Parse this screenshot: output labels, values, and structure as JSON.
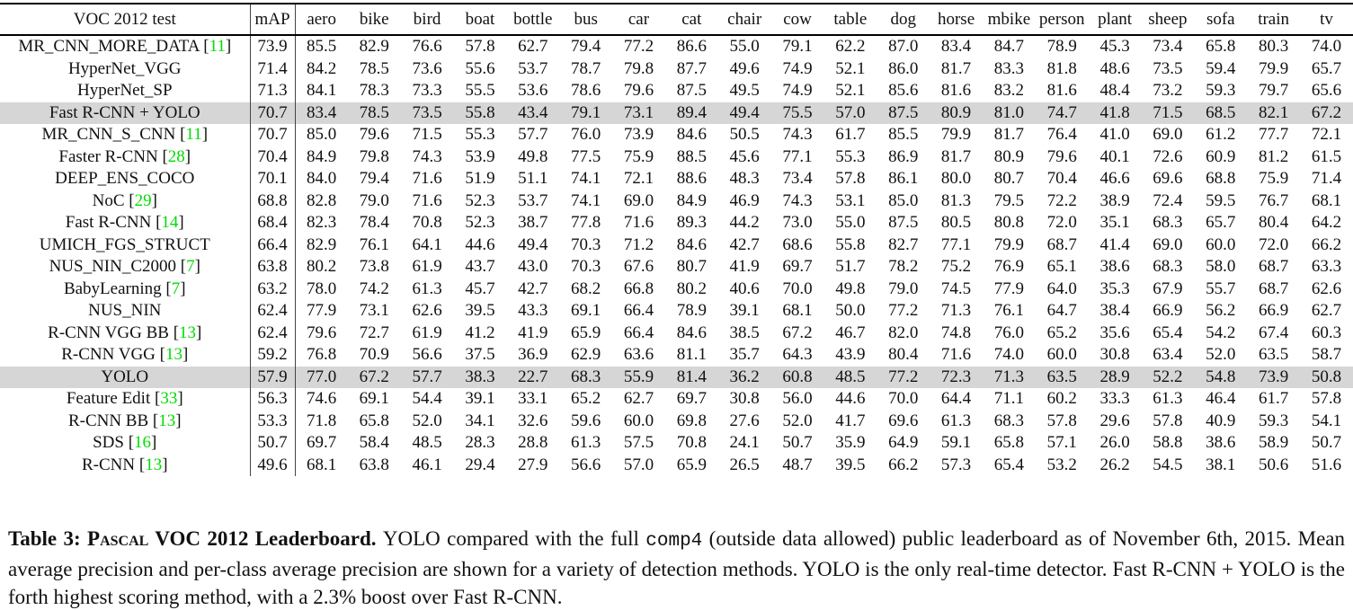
{
  "colors": {
    "highlight_row": "#d6d6d6",
    "citation_green": "#00dd00",
    "text": "#111111",
    "background": "#ffffff"
  },
  "table": {
    "title_column": "VOC 2012 test",
    "columns": [
      "mAP",
      "aero",
      "bike",
      "bird",
      "boat",
      "bottle",
      "bus",
      "car",
      "cat",
      "chair",
      "cow",
      "table",
      "dog",
      "horse",
      "mbike",
      "person",
      "plant",
      "sheep",
      "sofa",
      "train",
      "tv"
    ],
    "rows": [
      {
        "name": "MR_CNN_MORE_DATA",
        "cite": "11",
        "bold_name": false,
        "highlight": false,
        "values": [
          "73.9",
          "85.5",
          "82.9",
          "76.6",
          "57.8",
          "62.7",
          "79.4",
          "77.2",
          "86.6",
          "55.0",
          "79.1",
          "62.2",
          "87.0",
          "83.4",
          "84.7",
          "78.9",
          "45.3",
          "73.4",
          "65.8",
          "80.3",
          "74.0"
        ],
        "bold_cols": [
          0,
          1,
          2,
          3,
          4,
          5,
          6,
          9,
          10,
          11,
          13,
          14
        ]
      },
      {
        "name": "HyperNet_VGG",
        "cite": null,
        "bold_name": false,
        "highlight": false,
        "values": [
          "71.4",
          "84.2",
          "78.5",
          "73.6",
          "55.6",
          "53.7",
          "78.7",
          "79.8",
          "87.7",
          "49.6",
          "74.9",
          "52.1",
          "86.0",
          "81.7",
          "83.3",
          "81.8",
          "48.6",
          "73.5",
          "59.4",
          "79.9",
          "65.7"
        ],
        "bold_cols": [
          7,
          15,
          16,
          17
        ]
      },
      {
        "name": "HyperNet_SP",
        "cite": null,
        "bold_name": false,
        "highlight": false,
        "values": [
          "71.3",
          "84.1",
          "78.3",
          "73.3",
          "55.5",
          "53.6",
          "78.6",
          "79.6",
          "87.5",
          "49.5",
          "74.9",
          "52.1",
          "85.6",
          "81.6",
          "83.2",
          "81.6",
          "48.4",
          "73.2",
          "59.3",
          "79.7",
          "65.6"
        ],
        "bold_cols": []
      },
      {
        "name": "Fast R-CNN + YOLO",
        "cite": null,
        "bold_name": true,
        "highlight": true,
        "values": [
          "70.7",
          "83.4",
          "78.5",
          "73.5",
          "55.8",
          "43.4",
          "79.1",
          "73.1",
          "89.4",
          "49.4",
          "75.5",
          "57.0",
          "87.5",
          "80.9",
          "81.0",
          "74.7",
          "41.8",
          "71.5",
          "68.5",
          "82.1",
          "67.2"
        ],
        "bold_cols": [
          8,
          12,
          19
        ]
      },
      {
        "name": "MR_CNN_S_CNN",
        "cite": "11",
        "bold_name": false,
        "highlight": false,
        "values": [
          "70.7",
          "85.0",
          "79.6",
          "71.5",
          "55.3",
          "57.7",
          "76.0",
          "73.9",
          "84.6",
          "50.5",
          "74.3",
          "61.7",
          "85.5",
          "79.9",
          "81.7",
          "76.4",
          "41.0",
          "69.0",
          "61.2",
          "77.7",
          "72.1"
        ],
        "bold_cols": []
      },
      {
        "name": "Faster R-CNN",
        "cite": "28",
        "bold_name": false,
        "highlight": false,
        "values": [
          "70.4",
          "84.9",
          "79.8",
          "74.3",
          "53.9",
          "49.8",
          "77.5",
          "75.9",
          "88.5",
          "45.6",
          "77.1",
          "55.3",
          "86.9",
          "81.7",
          "80.9",
          "79.6",
          "40.1",
          "72.6",
          "60.9",
          "81.2",
          "61.5"
        ],
        "bold_cols": []
      },
      {
        "name": "DEEP_ENS_COCO",
        "cite": null,
        "bold_name": false,
        "highlight": false,
        "values": [
          "70.1",
          "84.0",
          "79.4",
          "71.6",
          "51.9",
          "51.1",
          "74.1",
          "72.1",
          "88.6",
          "48.3",
          "73.4",
          "57.8",
          "86.1",
          "80.0",
          "80.7",
          "70.4",
          "46.6",
          "69.6",
          "68.8",
          "75.9",
          "71.4"
        ],
        "bold_cols": [
          18
        ]
      },
      {
        "name": "NoC",
        "cite": "29",
        "bold_name": false,
        "highlight": false,
        "values": [
          "68.8",
          "82.8",
          "79.0",
          "71.6",
          "52.3",
          "53.7",
          "74.1",
          "69.0",
          "84.9",
          "46.9",
          "74.3",
          "53.1",
          "85.0",
          "81.3",
          "79.5",
          "72.2",
          "38.9",
          "72.4",
          "59.5",
          "76.7",
          "68.1"
        ],
        "bold_cols": []
      },
      {
        "name": "Fast R-CNN",
        "cite": "14",
        "bold_name": false,
        "highlight": false,
        "values": [
          "68.4",
          "82.3",
          "78.4",
          "70.8",
          "52.3",
          "38.7",
          "77.8",
          "71.6",
          "89.3",
          "44.2",
          "73.0",
          "55.0",
          "87.5",
          "80.5",
          "80.8",
          "72.0",
          "35.1",
          "68.3",
          "65.7",
          "80.4",
          "64.2"
        ],
        "bold_cols": [
          12
        ]
      },
      {
        "name": "UMICH_FGS_STRUCT",
        "cite": null,
        "bold_name": false,
        "highlight": false,
        "values": [
          "66.4",
          "82.9",
          "76.1",
          "64.1",
          "44.6",
          "49.4",
          "70.3",
          "71.2",
          "84.6",
          "42.7",
          "68.6",
          "55.8",
          "82.7",
          "77.1",
          "79.9",
          "68.7",
          "41.4",
          "69.0",
          "60.0",
          "72.0",
          "66.2"
        ],
        "bold_cols": []
      },
      {
        "name": "NUS_NIN_C2000",
        "cite": "7",
        "bold_name": false,
        "highlight": false,
        "values": [
          "63.8",
          "80.2",
          "73.8",
          "61.9",
          "43.7",
          "43.0",
          "70.3",
          "67.6",
          "80.7",
          "41.9",
          "69.7",
          "51.7",
          "78.2",
          "75.2",
          "76.9",
          "65.1",
          "38.6",
          "68.3",
          "58.0",
          "68.7",
          "63.3"
        ],
        "bold_cols": []
      },
      {
        "name": "BabyLearning",
        "cite": "7",
        "bold_name": false,
        "highlight": false,
        "values": [
          "63.2",
          "78.0",
          "74.2",
          "61.3",
          "45.7",
          "42.7",
          "68.2",
          "66.8",
          "80.2",
          "40.6",
          "70.0",
          "49.8",
          "79.0",
          "74.5",
          "77.9",
          "64.0",
          "35.3",
          "67.9",
          "55.7",
          "68.7",
          "62.6"
        ],
        "bold_cols": []
      },
      {
        "name": "NUS_NIN",
        "cite": null,
        "bold_name": false,
        "highlight": false,
        "values": [
          "62.4",
          "77.9",
          "73.1",
          "62.6",
          "39.5",
          "43.3",
          "69.1",
          "66.4",
          "78.9",
          "39.1",
          "68.1",
          "50.0",
          "77.2",
          "71.3",
          "76.1",
          "64.7",
          "38.4",
          "66.9",
          "56.2",
          "66.9",
          "62.7"
        ],
        "bold_cols": []
      },
      {
        "name": "R-CNN VGG BB",
        "cite": "13",
        "bold_name": false,
        "highlight": false,
        "values": [
          "62.4",
          "79.6",
          "72.7",
          "61.9",
          "41.2",
          "41.9",
          "65.9",
          "66.4",
          "84.6",
          "38.5",
          "67.2",
          "46.7",
          "82.0",
          "74.8",
          "76.0",
          "65.2",
          "35.6",
          "65.4",
          "54.2",
          "67.4",
          "60.3"
        ],
        "bold_cols": []
      },
      {
        "name": "R-CNN VGG",
        "cite": "13",
        "bold_name": false,
        "highlight": false,
        "values": [
          "59.2",
          "76.8",
          "70.9",
          "56.6",
          "37.5",
          "36.9",
          "62.9",
          "63.6",
          "81.1",
          "35.7",
          "64.3",
          "43.9",
          "80.4",
          "71.6",
          "74.0",
          "60.0",
          "30.8",
          "63.4",
          "52.0",
          "63.5",
          "58.7"
        ],
        "bold_cols": []
      },
      {
        "name": "YOLO",
        "cite": null,
        "bold_name": true,
        "highlight": true,
        "values": [
          "57.9",
          "77.0",
          "67.2",
          "57.7",
          "38.3",
          "22.7",
          "68.3",
          "55.9",
          "81.4",
          "36.2",
          "60.8",
          "48.5",
          "77.2",
          "72.3",
          "71.3",
          "63.5",
          "28.9",
          "52.2",
          "54.8",
          "73.9",
          "50.8"
        ],
        "bold_cols": []
      },
      {
        "name": "Feature Edit",
        "cite": "33",
        "bold_name": false,
        "highlight": false,
        "values": [
          "56.3",
          "74.6",
          "69.1",
          "54.4",
          "39.1",
          "33.1",
          "65.2",
          "62.7",
          "69.7",
          "30.8",
          "56.0",
          "44.6",
          "70.0",
          "64.4",
          "71.1",
          "60.2",
          "33.3",
          "61.3",
          "46.4",
          "61.7",
          "57.8"
        ],
        "bold_cols": []
      },
      {
        "name": "R-CNN BB",
        "cite": "13",
        "bold_name": false,
        "highlight": false,
        "values": [
          "53.3",
          "71.8",
          "65.8",
          "52.0",
          "34.1",
          "32.6",
          "59.6",
          "60.0",
          "69.8",
          "27.6",
          "52.0",
          "41.7",
          "69.6",
          "61.3",
          "68.3",
          "57.8",
          "29.6",
          "57.8",
          "40.9",
          "59.3",
          "54.1"
        ],
        "bold_cols": []
      },
      {
        "name": "SDS",
        "cite": "16",
        "bold_name": false,
        "highlight": false,
        "values": [
          "50.7",
          "69.7",
          "58.4",
          "48.5",
          "28.3",
          "28.8",
          "61.3",
          "57.5",
          "70.8",
          "24.1",
          "50.7",
          "35.9",
          "64.9",
          "59.1",
          "65.8",
          "57.1",
          "26.0",
          "58.8",
          "38.6",
          "58.9",
          "50.7"
        ],
        "bold_cols": []
      },
      {
        "name": "R-CNN",
        "cite": "13",
        "bold_name": false,
        "highlight": false,
        "values": [
          "49.6",
          "68.1",
          "63.8",
          "46.1",
          "29.4",
          "27.9",
          "56.6",
          "57.0",
          "65.9",
          "26.5",
          "48.7",
          "39.5",
          "66.2",
          "57.3",
          "65.4",
          "53.2",
          "26.2",
          "54.5",
          "38.1",
          "50.6",
          "51.6"
        ],
        "bold_cols": []
      }
    ]
  },
  "caption": {
    "segments": [
      {
        "text": "Table 3:  ",
        "style": "bold"
      },
      {
        "text": "Pascal",
        "style": "bold-smallcaps"
      },
      {
        "text": " VOC 2012 Leaderboard.  ",
        "style": "bold"
      },
      {
        "text": "YOLO compared with the full ",
        "style": "normal"
      },
      {
        "text": "comp4",
        "style": "mono"
      },
      {
        "text": " (outside data allowed) public leaderboard as of November 6th, 2015. Mean average precision and per-class average precision are shown for a variety of detection methods. YOLO is the only real-time detector. Fast R-CNN + YOLO is the forth highest scoring method, with a 2.3% boost over Fast R-CNN.",
        "style": "normal"
      }
    ]
  }
}
